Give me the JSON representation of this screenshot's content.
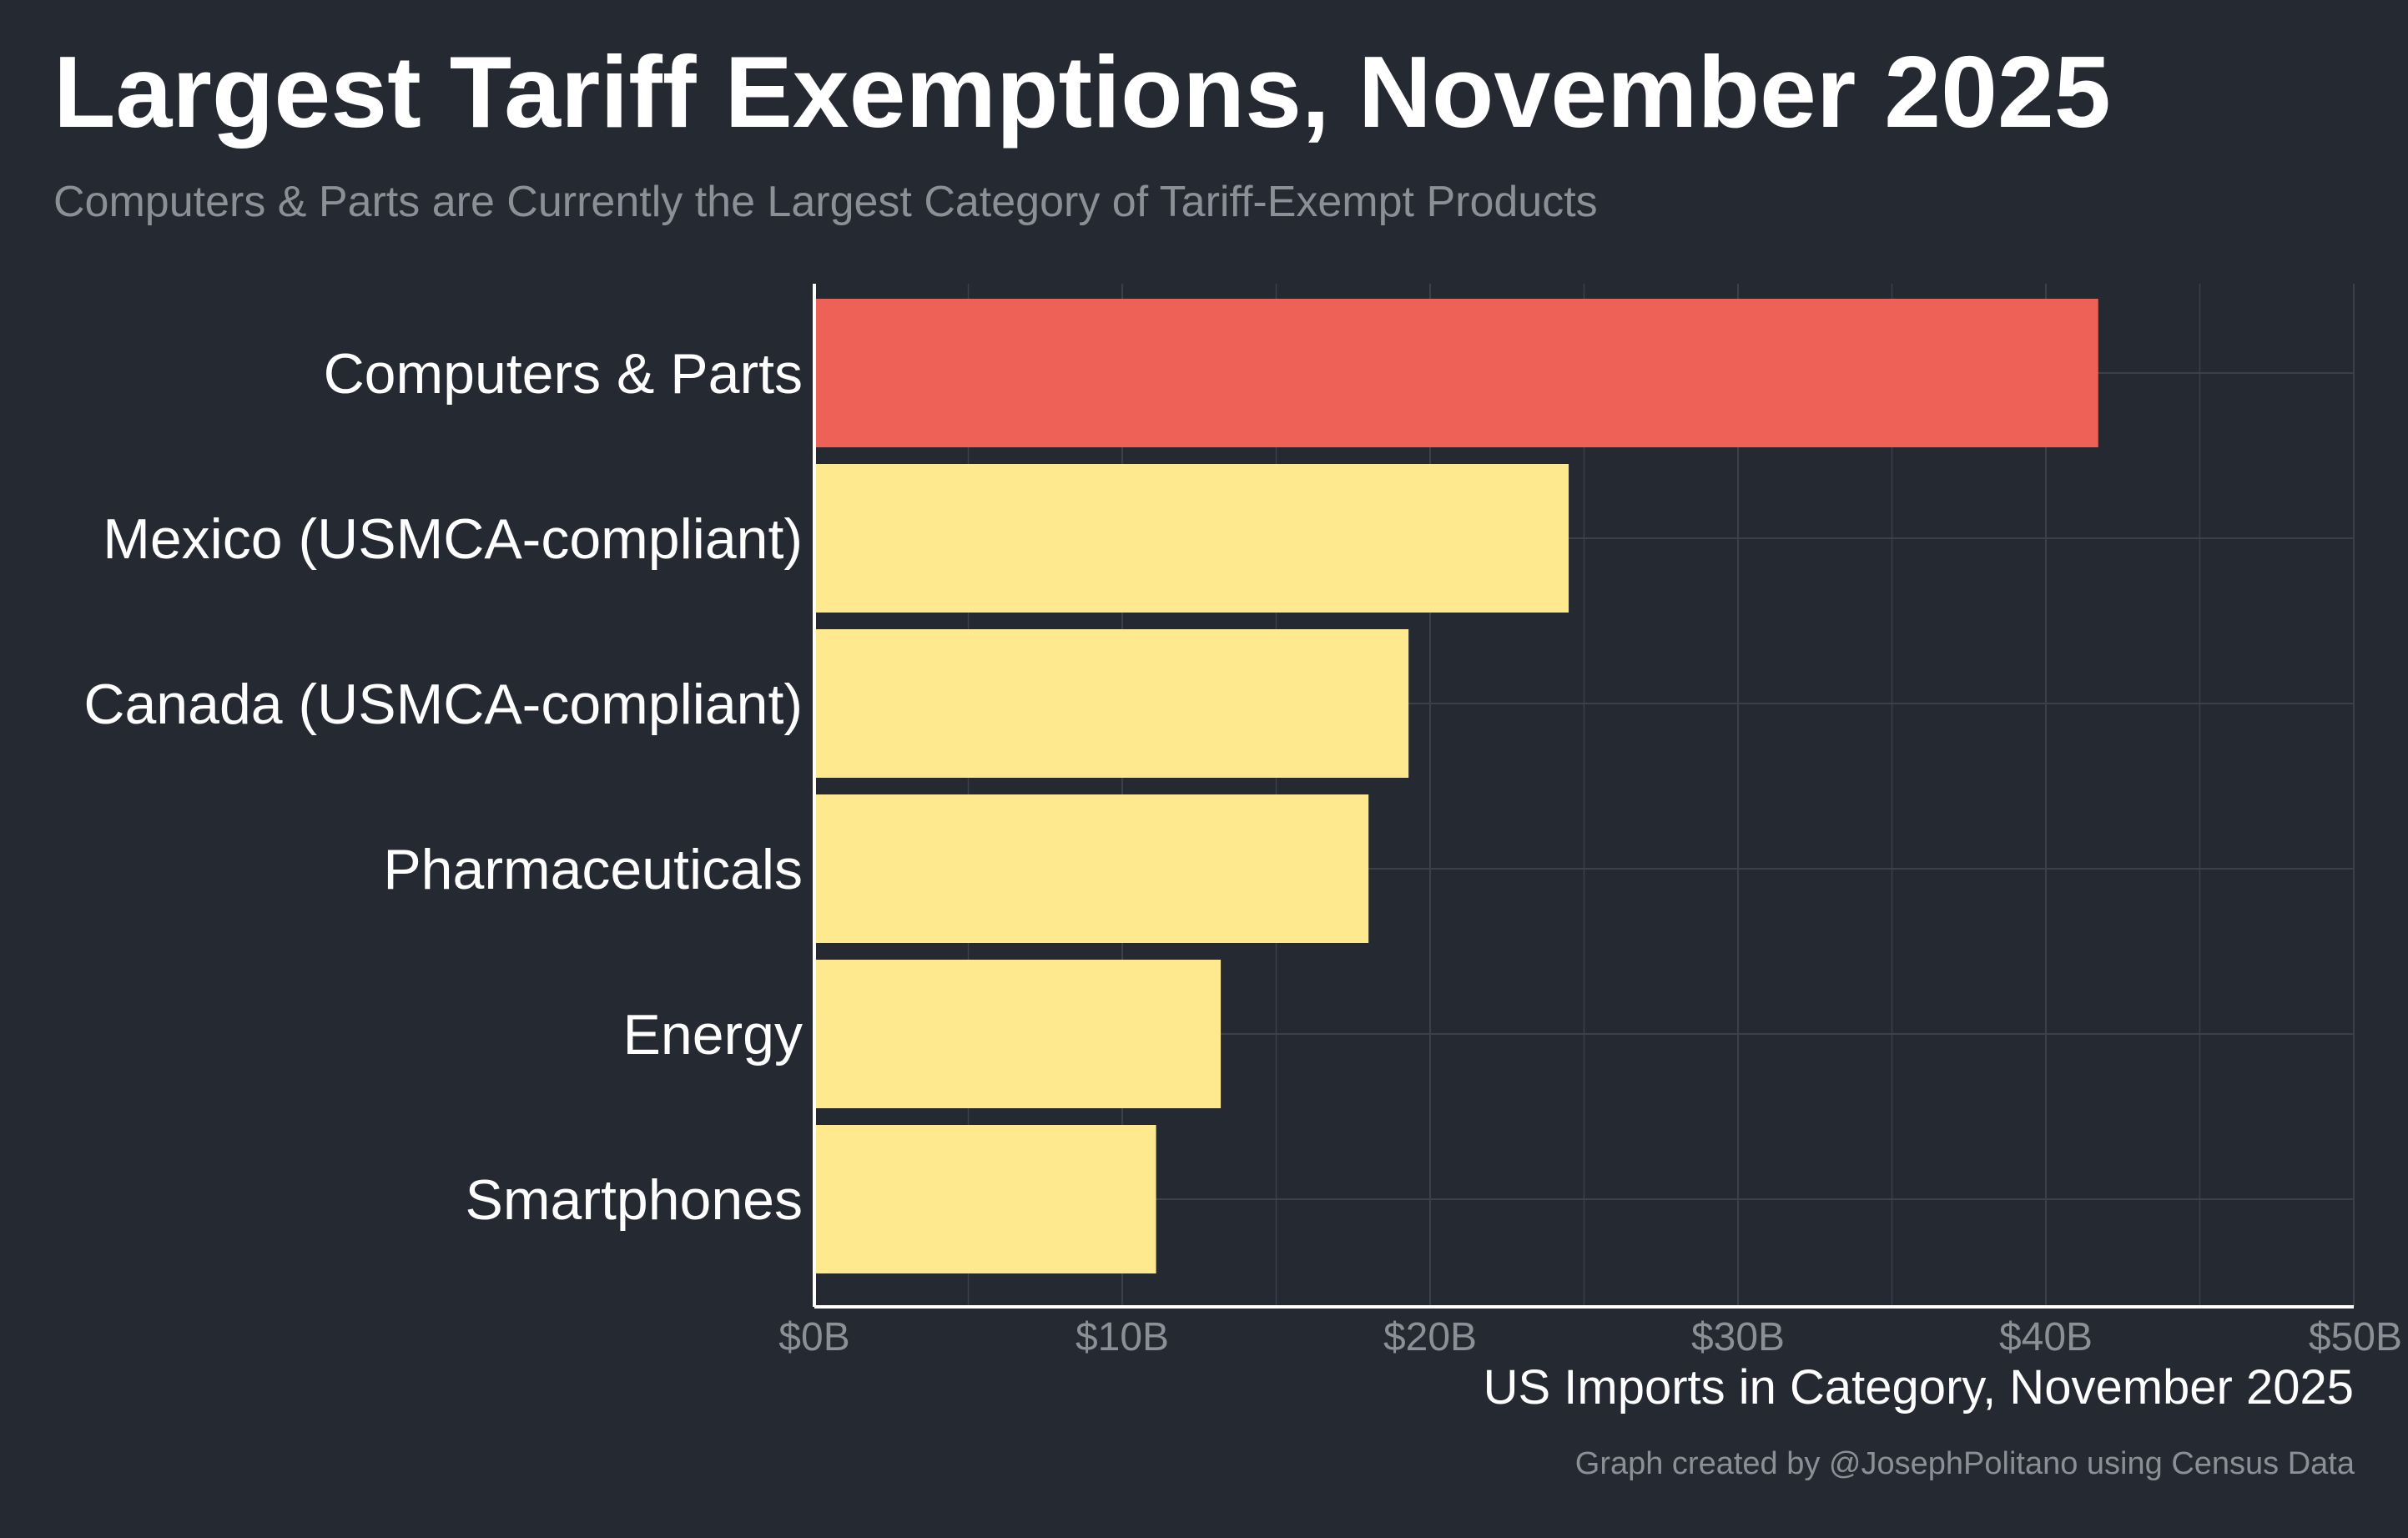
{
  "header": {
    "title": "Largest Tariff Exemptions, November 2025",
    "subtitle": "Computers & Parts are Currently the Largest Category of Tariff-Exempt Products"
  },
  "footer": {
    "credit": "Graph created by @JosephPolitano using Census Data"
  },
  "colors": {
    "background": "#252932",
    "highlight_bar": "#EE6157",
    "bar": "#FFE98F",
    "axis_text": "#8c8f96",
    "label_text": "#ffffff",
    "grid": "#3c404a"
  },
  "chart_data": {
    "type": "bar",
    "orientation": "horizontal",
    "categories": [
      "Computers & Parts",
      "Mexico (USMCA-compliant)",
      "Canada (USMCA-compliant)",
      "Pharmaceuticals",
      "Energy",
      "Smartphones"
    ],
    "values": [
      41.7,
      24.5,
      19.3,
      18.0,
      13.2,
      11.1
    ],
    "highlight": [
      true,
      false,
      false,
      false,
      false,
      false
    ],
    "xlim": [
      0,
      50
    ],
    "xticks": [
      0,
      10,
      20,
      30,
      40,
      50
    ],
    "xtick_labels": [
      "$0B",
      "$10B",
      "$20B",
      "$30B",
      "$40B",
      "$50B"
    ],
    "xlabel": "US Imports in Category, November 2025",
    "ylabel": "",
    "grid": true,
    "unit": "USD billions"
  }
}
